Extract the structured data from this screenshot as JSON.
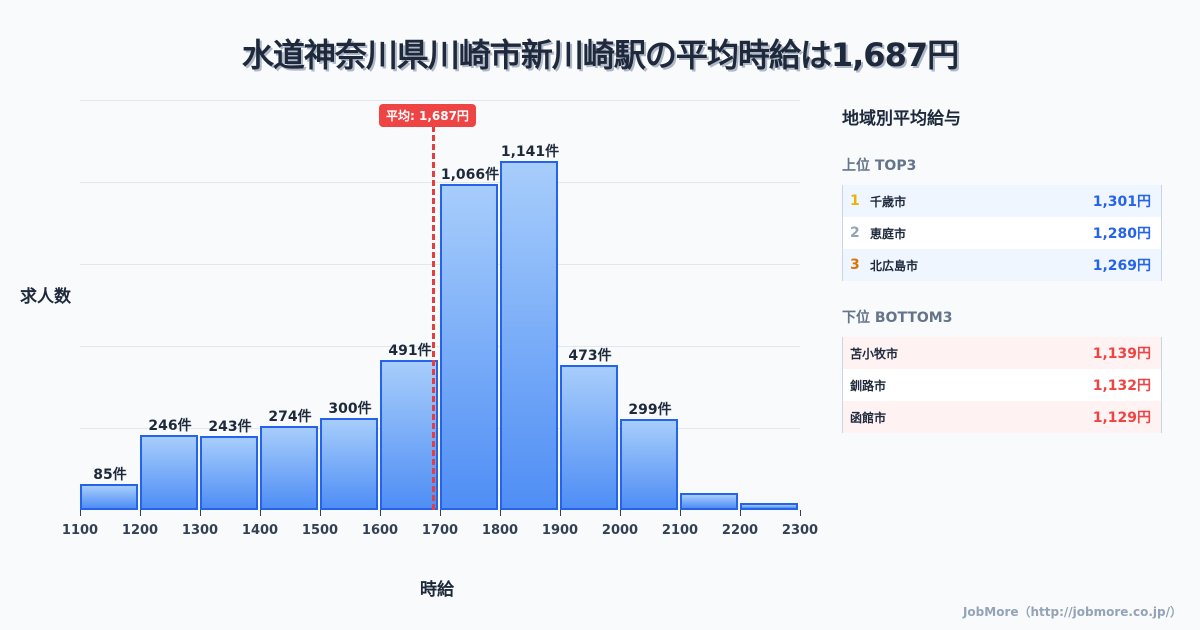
{
  "title": "水道神奈川県川崎市新川崎駅の平均時給は1,687円",
  "chart_data": {
    "type": "bar",
    "title": "水道神奈川県川崎市新川崎駅の平均時給は1,687円",
    "xlabel": "時給",
    "ylabel": "求人数",
    "categories": [
      "1100-1200",
      "1200-1300",
      "1300-1400",
      "1400-1500",
      "1500-1600",
      "1600-1700",
      "1700-1800",
      "1800-1900",
      "1900-2000",
      "2000-2100",
      "2100-2200",
      "2200-2300"
    ],
    "values": [
      85,
      246,
      243,
      274,
      300,
      491,
      1066,
      1141,
      473,
      299,
      55,
      23
    ],
    "labels": [
      "85件",
      "246件",
      "243件",
      "274件",
      "300件",
      "491件",
      "1,066件",
      "1,141件",
      "473件",
      "299件",
      "",
      ""
    ],
    "x_ticks": [
      "1100",
      "1200",
      "1300",
      "1400",
      "1500",
      "1600",
      "1700",
      "1800",
      "1900",
      "2000",
      "2100",
      "2200",
      "2300"
    ],
    "ylim": [
      0,
      1340
    ],
    "grid": true,
    "mean": 1687,
    "mean_label": "平均: 1,687円"
  },
  "side": {
    "title": "地域別平均給与",
    "top_label": "上位 TOP3",
    "top": [
      {
        "rank": "1",
        "name": "千歳市",
        "value": "1,301円",
        "color": "#eab308"
      },
      {
        "rank": "2",
        "name": "恵庭市",
        "value": "1,280円",
        "color": "#94a3b8"
      },
      {
        "rank": "3",
        "name": "北広島市",
        "value": "1,269円",
        "color": "#d97706"
      }
    ],
    "bottom_label": "下位 BOTTOM3",
    "bottom": [
      {
        "name": "苫小牧市",
        "value": "1,139円"
      },
      {
        "name": "釧路市",
        "value": "1,132円"
      },
      {
        "name": "函館市",
        "value": "1,129円"
      }
    ]
  },
  "footer": "JobMore（http://jobmore.co.jp/）"
}
